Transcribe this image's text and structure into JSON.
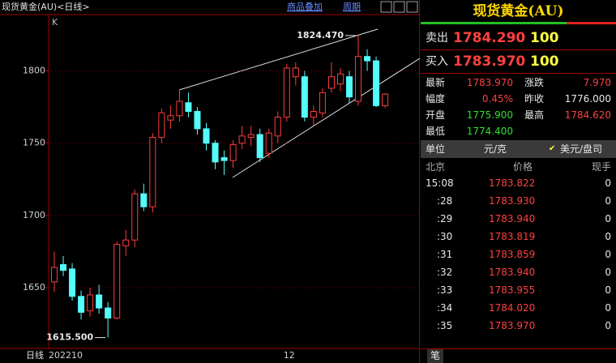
{
  "toolbar": {
    "title": "现货黄金(AU)<日线>",
    "buttons": [
      "商品叠加",
      "周期"
    ]
  },
  "chart_data": {
    "type": "candlestick",
    "label": "K",
    "period_label": "日线",
    "categories": [
      null,
      "202210",
      null,
      null,
      null,
      null,
      null,
      null,
      null,
      null,
      null,
      null,
      null,
      null,
      null,
      null,
      null,
      null,
      null,
      null,
      null,
      null,
      null,
      null,
      null,
      null,
      "12",
      null,
      null,
      null,
      null,
      null,
      null,
      null,
      null,
      null,
      null,
      null
    ],
    "open": [
      1654,
      1666,
      1663,
      1644,
      1634,
      1645,
      1636,
      1629,
      1679,
      1683,
      1715,
      1706,
      1754,
      1766,
      1769,
      1778,
      1772,
      1760,
      1750,
      1740,
      1738,
      1750,
      1754,
      1756,
      1743,
      1755,
      1768,
      1796,
      1796,
      1768,
      1771,
      1788,
      1791,
      1796,
      1779,
      1810,
      1807,
      1775.9
    ],
    "high": [
      1675,
      1672,
      1667,
      1648,
      1650,
      1652,
      1640,
      1682,
      1690,
      1718,
      1722,
      1757,
      1774,
      1776,
      1787,
      1785,
      1775,
      1764,
      1752,
      1745,
      1752,
      1762,
      1762,
      1760,
      1760,
      1772,
      1805,
      1806,
      1800,
      1776,
      1788,
      1806,
      1802,
      1800,
      1824.47,
      1815,
      1810,
      1784.62
    ],
    "low": [
      1647,
      1658,
      1641,
      1628,
      1630,
      1632,
      1615.5,
      1628,
      1672,
      1678,
      1703,
      1702,
      1750,
      1760,
      1765,
      1768,
      1756,
      1745,
      1732,
      1728,
      1733,
      1746,
      1748,
      1737,
      1740,
      1750,
      1765,
      1790,
      1765,
      1762,
      1768,
      1785,
      1786,
      1778,
      1776,
      1800,
      1775,
      1774.4
    ],
    "close": [
      1664,
      1662,
      1644,
      1633,
      1645,
      1636,
      1629,
      1680,
      1683,
      1715,
      1706,
      1754,
      1771,
      1769,
      1779,
      1772,
      1760,
      1750,
      1737,
      1738,
      1749,
      1755,
      1756,
      1740,
      1757,
      1768,
      1802,
      1802,
      1768,
      1772,
      1785,
      1796,
      1798,
      1782,
      1810,
      1807,
      1776,
      1783.97
    ],
    "up_color": "#ff3c3c",
    "down_color": "#54fcfc",
    "ylim": [
      1608,
      1839
    ],
    "yticks": [
      1650,
      1700,
      1750,
      1800
    ],
    "grid": true,
    "annotations": [
      {
        "value": 1824.47,
        "label": "1824.470"
      },
      {
        "value": 1615.5,
        "label": "1615.500"
      }
    ]
  },
  "quote": {
    "title": "现货黄金(AU)",
    "sell": {
      "label": "卖出",
      "price": "1784.290",
      "volume": "100"
    },
    "buy": {
      "label": "买入",
      "price": "1783.970",
      "volume": "100"
    },
    "stats": [
      [
        "最新",
        "1783.970",
        "涨跌",
        "7.970"
      ],
      [
        "幅度",
        "0.45%",
        "昨收",
        "1776.000"
      ],
      [
        "开盘",
        "1775.900",
        "最高",
        "1784.620"
      ],
      [
        "最低",
        "1774.400"
      ]
    ],
    "unit": {
      "label": "单位",
      "options": [
        "元/克",
        "美元/盘司"
      ]
    },
    "ticks": {
      "headers": [
        "北京",
        "价格",
        "现手"
      ],
      "rows": [
        [
          "15:08",
          "1783.822",
          "0"
        ],
        [
          ":28",
          "1783.930",
          "0"
        ],
        [
          ":29",
          "1783.940",
          "0"
        ],
        [
          ":30",
          "1783.819",
          "0"
        ],
        [
          ":31",
          "1783.859",
          "0"
        ],
        [
          ":32",
          "1783.940",
          "0"
        ],
        [
          ":33",
          "1783.955",
          "0"
        ],
        [
          ":34",
          "1784.020",
          "0"
        ],
        [
          ":35",
          "1783.970",
          "0"
        ]
      ]
    },
    "tab": "笔"
  }
}
